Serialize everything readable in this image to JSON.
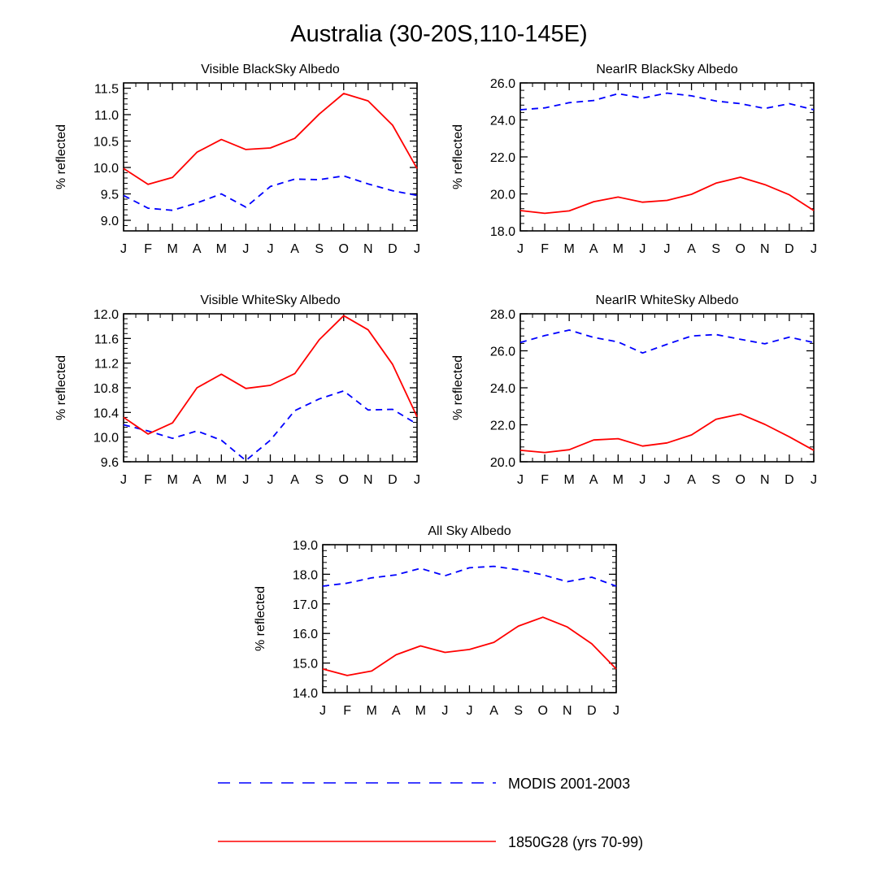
{
  "figure": {
    "title": "Australia (30-20S,110-145E)"
  },
  "colors": {
    "modis": "#0000ff",
    "model": "#ff0000",
    "axis": "#000000"
  },
  "legend": {
    "modis_label": "MODIS 2001-2003",
    "model_label": "1850G28 (yrs 70-99)"
  },
  "chart_data": [
    {
      "type": "line",
      "title": "Visible BlackSky Albedo",
      "xlabel": "",
      "ylabel": "% reflected",
      "categories": [
        "J",
        "F",
        "M",
        "A",
        "M",
        "J",
        "J",
        "A",
        "S",
        "O",
        "N",
        "D",
        "J"
      ],
      "ylim": [
        8.8,
        11.6
      ],
      "yticks": [
        9.0,
        9.5,
        10.0,
        10.5,
        11.0,
        11.5
      ],
      "ytick_labels": [
        "9.0",
        "9.5",
        "10.0",
        "10.5",
        "11.0",
        "11.5"
      ],
      "series": [
        {
          "name": "MODIS 2001-2003",
          "style": "dashed",
          "values": [
            9.47,
            9.23,
            9.19,
            9.33,
            9.5,
            9.25,
            9.64,
            9.78,
            9.77,
            9.84,
            9.69,
            9.56,
            9.47
          ]
        },
        {
          "name": "1850G28 (yrs 70-99)",
          "style": "solid",
          "values": [
            9.98,
            9.68,
            9.81,
            10.29,
            10.53,
            10.34,
            10.37,
            10.55,
            11.01,
            11.4,
            11.26,
            10.8,
            9.98
          ]
        }
      ]
    },
    {
      "type": "line",
      "title": "NearIR BlackSky Albedo",
      "xlabel": "",
      "ylabel": "% reflected",
      "categories": [
        "J",
        "F",
        "M",
        "A",
        "M",
        "J",
        "J",
        "A",
        "S",
        "O",
        "N",
        "D",
        "J"
      ],
      "ylim": [
        18.0,
        26.0
      ],
      "yticks": [
        18.0,
        20.0,
        22.0,
        24.0,
        26.0
      ],
      "ytick_labels": [
        "18.0",
        "20.0",
        "22.0",
        "24.0",
        "26.0"
      ],
      "series": [
        {
          "name": "MODIS 2001-2003",
          "style": "dashed",
          "values": [
            24.55,
            24.65,
            24.93,
            25.05,
            25.42,
            25.18,
            25.45,
            25.3,
            25.02,
            24.88,
            24.62,
            24.88,
            24.55
          ]
        },
        {
          "name": "1850G28 (yrs 70-99)",
          "style": "solid",
          "values": [
            19.1,
            18.95,
            19.08,
            19.58,
            19.83,
            19.55,
            19.65,
            19.98,
            20.58,
            20.9,
            20.5,
            19.95,
            19.1
          ]
        }
      ]
    },
    {
      "type": "line",
      "title": "Visible WhiteSky Albedo",
      "xlabel": "",
      "ylabel": "% reflected",
      "categories": [
        "J",
        "F",
        "M",
        "A",
        "M",
        "J",
        "J",
        "A",
        "S",
        "O",
        "N",
        "D",
        "J"
      ],
      "ylim": [
        9.6,
        12.0
      ],
      "yticks": [
        9.6,
        10.0,
        10.4,
        10.8,
        11.2,
        11.6,
        12.0
      ],
      "ytick_labels": [
        "9.6",
        "10.0",
        "10.4",
        "10.8",
        "11.2",
        "11.6",
        "12.0"
      ],
      "series": [
        {
          "name": "MODIS 2001-2003",
          "style": "dashed",
          "values": [
            10.2,
            10.1,
            9.98,
            10.1,
            9.95,
            9.62,
            9.95,
            10.43,
            10.62,
            10.75,
            10.44,
            10.45,
            10.21
          ]
        },
        {
          "name": "1850G28 (yrs 70-99)",
          "style": "solid",
          "values": [
            10.32,
            10.05,
            10.23,
            10.8,
            11.02,
            10.79,
            10.84,
            11.03,
            11.58,
            11.97,
            11.74,
            11.18,
            10.33
          ]
        }
      ]
    },
    {
      "type": "line",
      "title": "NearIR WhiteSky Albedo",
      "xlabel": "",
      "ylabel": "% reflected",
      "categories": [
        "J",
        "F",
        "M",
        "A",
        "M",
        "J",
        "J",
        "A",
        "S",
        "O",
        "N",
        "D",
        "J"
      ],
      "ylim": [
        20.0,
        28.0
      ],
      "yticks": [
        20.0,
        22.0,
        24.0,
        26.0,
        28.0
      ],
      "ytick_labels": [
        "20.0",
        "22.0",
        "24.0",
        "26.0",
        "28.0"
      ],
      "series": [
        {
          "name": "MODIS 2001-2003",
          "style": "dashed",
          "values": [
            26.45,
            26.82,
            27.12,
            26.72,
            26.48,
            25.88,
            26.35,
            26.8,
            26.88,
            26.62,
            26.38,
            26.74,
            26.45
          ]
        },
        {
          "name": "1850G28 (yrs 70-99)",
          "style": "solid",
          "values": [
            20.62,
            20.5,
            20.65,
            21.18,
            21.25,
            20.85,
            21.02,
            21.45,
            22.3,
            22.58,
            22.02,
            21.35,
            20.62
          ]
        }
      ]
    },
    {
      "type": "line",
      "title": "All Sky Albedo",
      "xlabel": "",
      "ylabel": "% reflected",
      "categories": [
        "J",
        "F",
        "M",
        "A",
        "M",
        "J",
        "J",
        "A",
        "S",
        "O",
        "N",
        "D",
        "J"
      ],
      "ylim": [
        14.0,
        19.0
      ],
      "yticks": [
        14.0,
        15.0,
        16.0,
        17.0,
        18.0,
        19.0
      ],
      "ytick_labels": [
        "14.0",
        "15.0",
        "16.0",
        "17.0",
        "18.0",
        "19.0"
      ],
      "series": [
        {
          "name": "MODIS 2001-2003",
          "style": "dashed",
          "values": [
            17.6,
            17.7,
            17.88,
            17.98,
            18.2,
            17.95,
            18.22,
            18.27,
            18.15,
            17.98,
            17.75,
            17.9,
            17.6
          ]
        },
        {
          "name": "1850G28 (yrs 70-99)",
          "style": "solid",
          "values": [
            14.8,
            14.58,
            14.73,
            15.28,
            15.58,
            15.36,
            15.46,
            15.7,
            16.25,
            16.55,
            16.22,
            15.65,
            14.8
          ]
        }
      ]
    }
  ]
}
